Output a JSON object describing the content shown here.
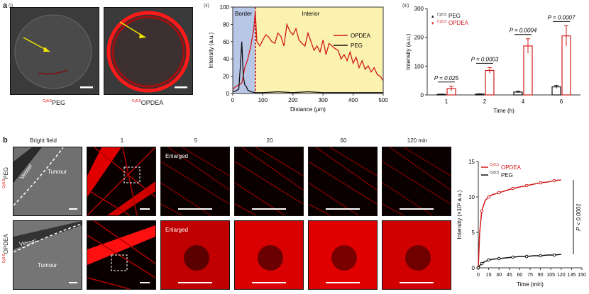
{
  "panel_a": {
    "letter": "a",
    "sub_i": "(i)",
    "sub_ii": "(ii)",
    "sub_iii": "(iii)",
    "img1_caption_sup": "Cy5.5",
    "img1_caption": "PEG",
    "img2_caption_sup": "Cy5.5",
    "img2_caption": "OPDEA"
  },
  "panel_b": {
    "letter": "b",
    "col_titles": [
      "Bright field",
      "1",
      "5",
      "20",
      "60",
      "120 min"
    ],
    "row1_label_sup": "Cy5.5",
    "row1_label": "PEG",
    "row2_label_sup": "Cy5.5",
    "row2_label": "OPDEA",
    "vessel": "Vessel",
    "tumour": "Tumour",
    "enlarged": "Enlarged"
  },
  "colors": {
    "opdea": "#d11a1a",
    "peg": "#111111",
    "border_fill": "#b9c7e6",
    "interior_fill": "#fbf2b0"
  },
  "chart_data": [
    {
      "type": "line",
      "region_labels": [
        "Border",
        "Interior"
      ],
      "xlabel": "Distance (μm)",
      "ylabel": "Intensity (a.u.)",
      "xlim": [
        0,
        500
      ],
      "ylim": [
        0,
        100
      ],
      "xticks": [
        0,
        100,
        200,
        300,
        400,
        500
      ],
      "yticks": [
        0,
        20,
        40,
        60,
        80,
        100
      ],
      "border_end": 75,
      "legend_position": "top-right",
      "series": [
        {
          "name": "OPDEA",
          "x": [
            0,
            10,
            20,
            30,
            40,
            50,
            60,
            70,
            75,
            80,
            90,
            100,
            110,
            120,
            130,
            140,
            150,
            160,
            170,
            180,
            190,
            200,
            210,
            220,
            230,
            240,
            250,
            260,
            270,
            280,
            290,
            300,
            310,
            320,
            330,
            340,
            350,
            360,
            370,
            380,
            390,
            400,
            410,
            420,
            430,
            440,
            450,
            460,
            470,
            480,
            490,
            500
          ],
          "y": [
            5,
            8,
            10,
            12,
            30,
            40,
            55,
            75,
            95,
            60,
            55,
            62,
            68,
            65,
            60,
            58,
            70,
            66,
            55,
            80,
            72,
            68,
            75,
            62,
            58,
            55,
            70,
            60,
            50,
            55,
            48,
            62,
            45,
            58,
            55,
            52,
            50,
            40,
            45,
            38,
            48,
            35,
            42,
            30,
            38,
            28,
            32,
            25,
            30,
            22,
            20,
            15
          ]
        },
        {
          "name": "PEG",
          "x": [
            0,
            10,
            20,
            25,
            30,
            35,
            40,
            45,
            50,
            60,
            75,
            100,
            150,
            200,
            250,
            300,
            350,
            400,
            450,
            500
          ],
          "y": [
            2,
            3,
            5,
            30,
            60,
            20,
            10,
            8,
            4,
            2,
            1,
            1,
            2,
            1,
            2,
            1,
            1,
            1,
            1,
            1
          ]
        }
      ]
    },
    {
      "type": "bar",
      "categories": [
        "1",
        "2",
        "4",
        "6"
      ],
      "xlabel": "Time (h)",
      "ylabel": "Intensity (a.u.)",
      "ylim": [
        0,
        300
      ],
      "yticks": [
        0,
        100,
        200,
        300
      ],
      "legend_position": "top-left",
      "series": [
        {
          "name": "PEG",
          "sup": "Cy5.5",
          "values": [
            2,
            3,
            10,
            28
          ],
          "errors": [
            1,
            1,
            3,
            5
          ]
        },
        {
          "name": "OPDEA",
          "sup": "Cy5.5",
          "values": [
            22,
            85,
            170,
            205
          ],
          "errors": [
            8,
            10,
            25,
            35
          ]
        }
      ],
      "pvalues": [
        "P = 0.025",
        "P = 0.0003",
        "P = 0.0004",
        "P = 0.0007"
      ]
    },
    {
      "type": "line",
      "xlabel": "Time (min)",
      "ylabel": "Intensity (×10³ a.u.)",
      "xlim": [
        0,
        150
      ],
      "ylim": [
        0,
        15
      ],
      "xticks": [
        0,
        15,
        30,
        45,
        60,
        75,
        90,
        105,
        120,
        135,
        150
      ],
      "yticks": [
        0,
        5,
        10,
        15
      ],
      "pvalue": "P < 0.0001",
      "legend_position": "top-left",
      "series": [
        {
          "name": "OPDEA",
          "sup": "Cy5.5",
          "x": [
            0,
            2,
            5,
            10,
            15,
            20,
            30,
            40,
            50,
            60,
            70,
            80,
            90,
            100,
            110,
            120
          ],
          "y": [
            0,
            5,
            8,
            9.5,
            10,
            10.3,
            10.6,
            10.9,
            11.2,
            11.4,
            11.6,
            11.8,
            12,
            12.1,
            12.3,
            12.4
          ]
        },
        {
          "name": "PEG",
          "sup": "Cy5.5",
          "x": [
            0,
            2,
            5,
            10,
            15,
            20,
            30,
            40,
            50,
            60,
            70,
            80,
            90,
            100,
            110,
            120
          ],
          "y": [
            0,
            0.3,
            0.6,
            0.9,
            1.1,
            1.2,
            1.3,
            1.4,
            1.5,
            1.6,
            1.6,
            1.7,
            1.7,
            1.8,
            1.8,
            1.9
          ]
        }
      ]
    }
  ]
}
